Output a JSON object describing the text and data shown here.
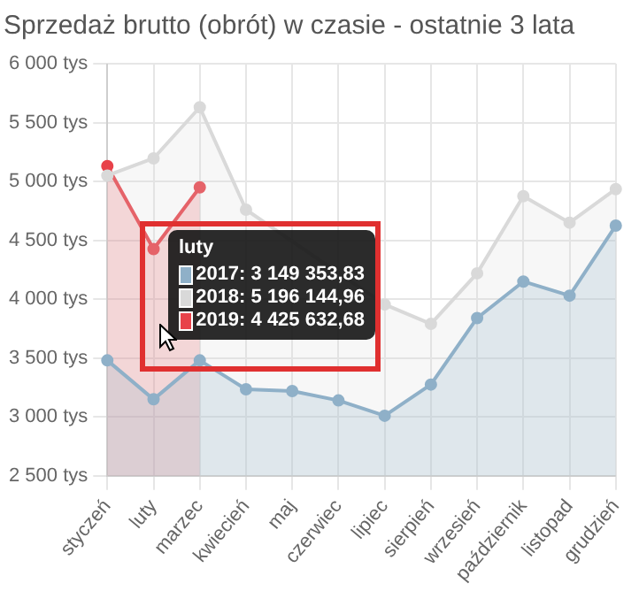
{
  "chart_data": {
    "type": "area",
    "title": "Sprzedaż brutto (obrót) w czasie - ostatnie 3 lata",
    "categories": [
      "styczeń",
      "luty",
      "marzec",
      "kwiecień",
      "maj",
      "czerwiec",
      "lipiec",
      "sierpień",
      "wrzesień",
      "październik",
      "listopad",
      "grudzień"
    ],
    "series": [
      {
        "color": "#8fb0c8",
        "values": [
          3480,
          3149.35,
          3480,
          3235,
          3220,
          3140,
          3010,
          3275,
          3840,
          4150,
          4030,
          4625
        ]
      },
      {
        "color": "#d9d9d9",
        "values": [
          5050,
          5196.14,
          5630,
          4760,
          null,
          null,
          3955,
          3790,
          4220,
          4875,
          4650,
          4935
        ]
      },
      {
        "color": "#e8424a",
        "values": [
          5130,
          4425.63,
          4950,
          null,
          null,
          null,
          null,
          null,
          null,
          null,
          null,
          null
        ]
      }
    ],
    "ylim": [
      2500,
      6000
    ],
    "yticks": [
      {
        "value": 2500,
        "label": "2 500 tys"
      },
      {
        "value": 3000,
        "label": "3 000 tys"
      },
      {
        "value": 3500,
        "label": "3 500 tys"
      },
      {
        "value": 4000,
        "label": "4 000 tys"
      },
      {
        "value": 4500,
        "label": "4 500 tys"
      },
      {
        "value": 5000,
        "label": "5 000 tys"
      },
      {
        "value": 5500,
        "label": "5 500 tys"
      },
      {
        "value": 6000,
        "label": "6 000 tys"
      }
    ],
    "grid": true,
    "marker": "circle",
    "annotations": [
      "luty",
      "2017: 3 149 353,83",
      "2018: 5 196 144,96",
      "2019: 4 425 632,68"
    ]
  }
}
